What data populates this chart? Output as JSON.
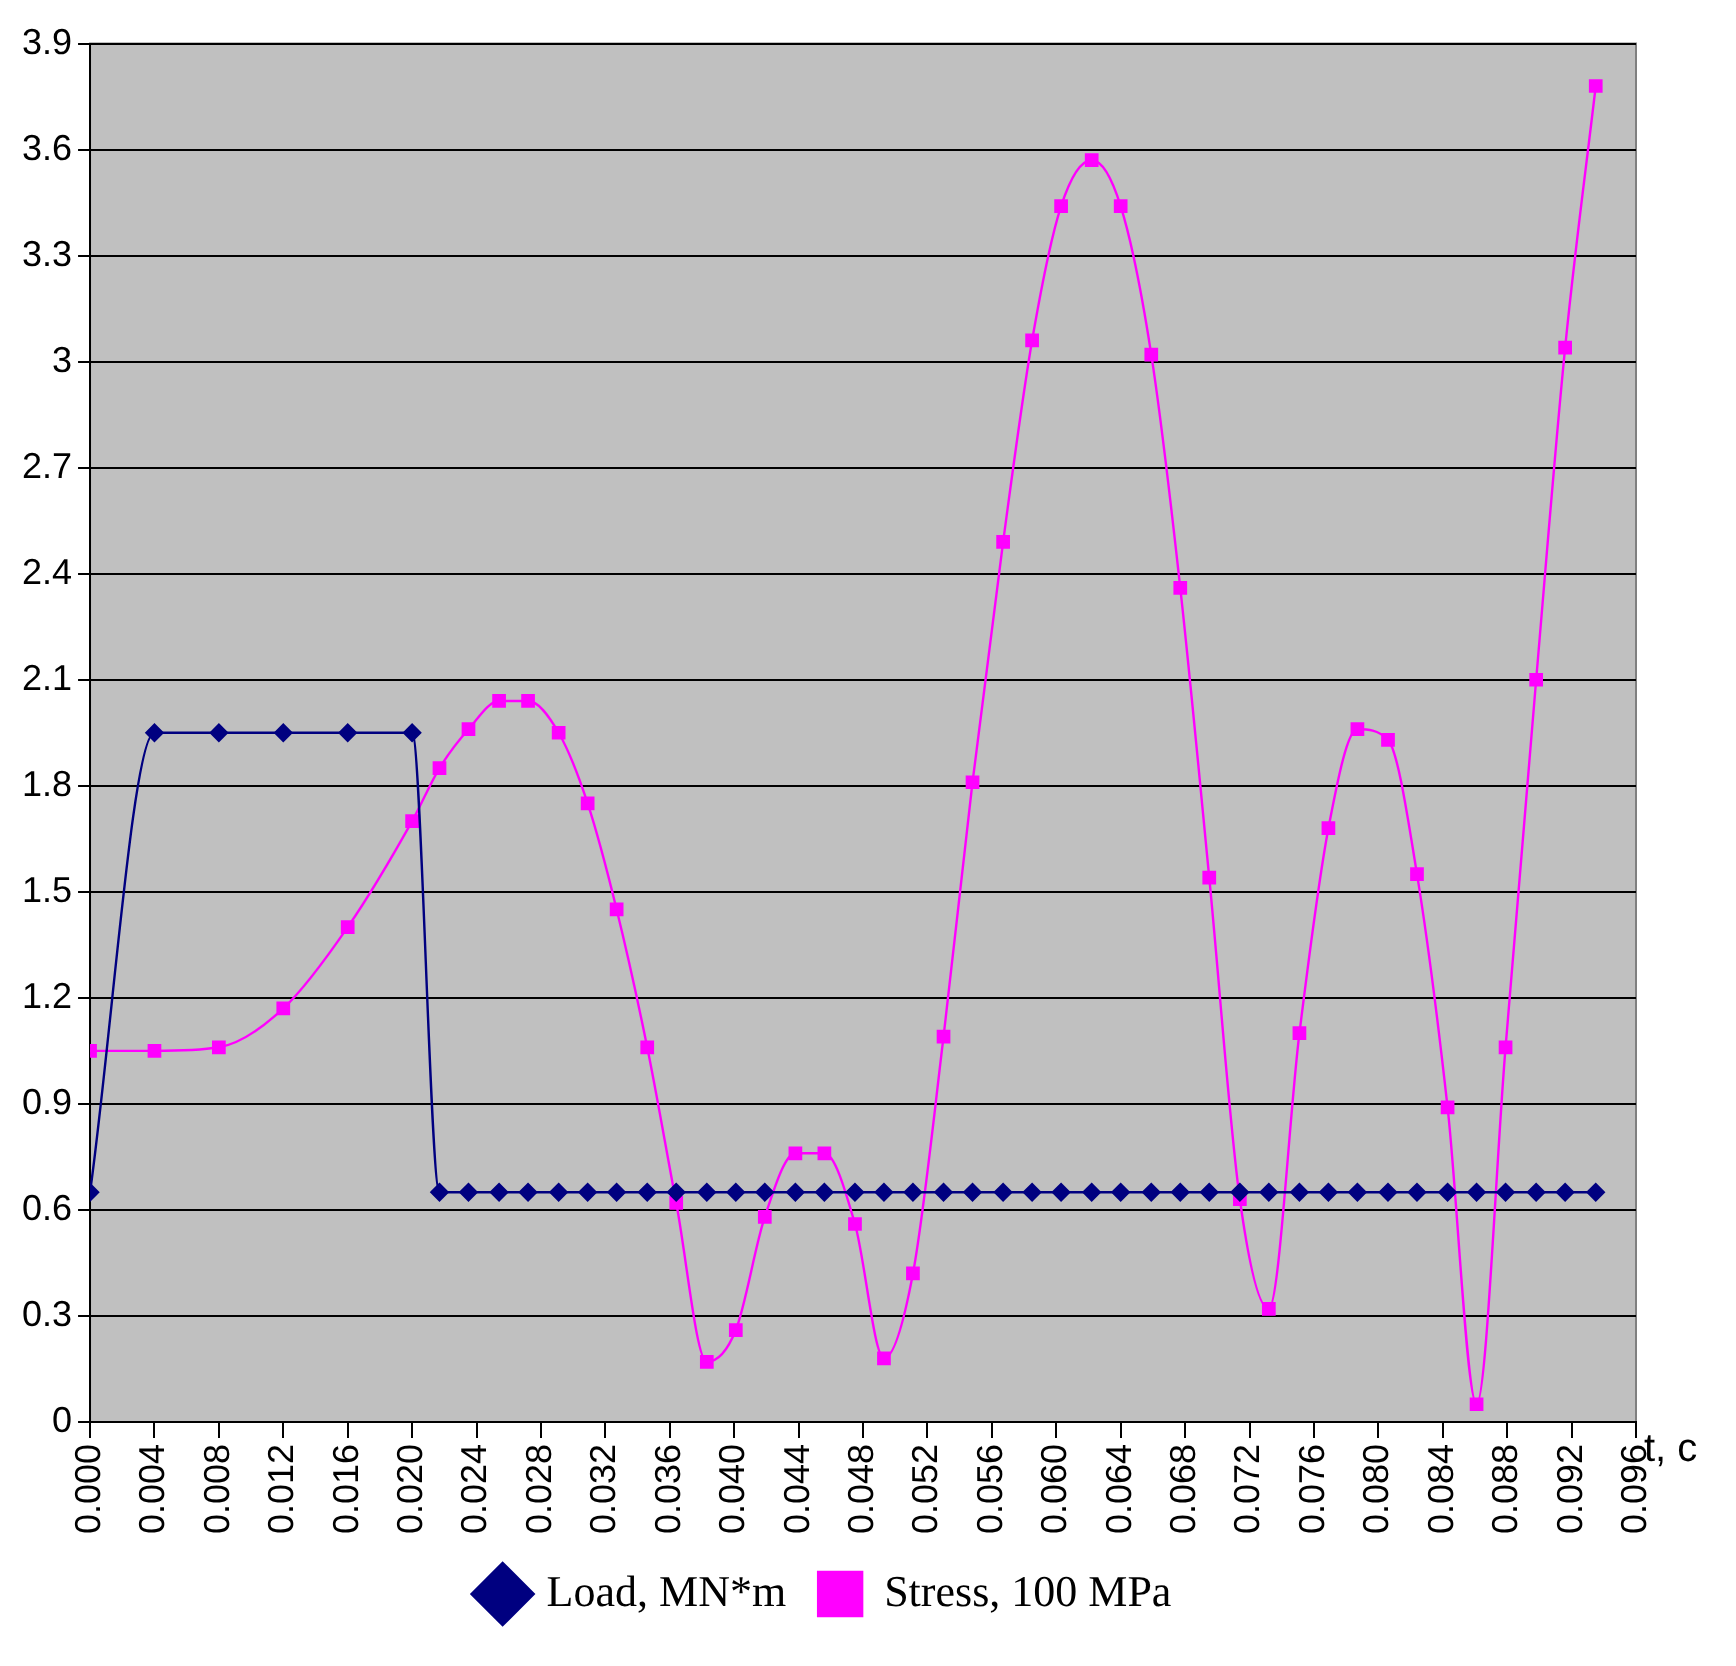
{
  "chart_data": {
    "type": "line",
    "xlabel": "t, c",
    "x": [
      0,
      0.004,
      0.008,
      0.012,
      0.016,
      0.02,
      0.0217,
      0.0235,
      0.0254,
      0.0272,
      0.0291,
      0.0309,
      0.0327,
      0.0346,
      0.0364,
      0.0383,
      0.0401,
      0.0419,
      0.0438,
      0.0456,
      0.0475,
      0.0493,
      0.0511,
      0.053,
      0.0548,
      0.0567,
      0.0585,
      0.0603,
      0.0622,
      0.064,
      0.0659,
      0.0677,
      0.0695,
      0.0714,
      0.0732,
      0.0751,
      0.0769,
      0.0787,
      0.0806,
      0.0824,
      0.0843,
      0.0861,
      0.0879,
      0.0898,
      0.0916,
      0.0935
    ],
    "series": [
      {
        "name": "Load, MN*m",
        "color": "#000080",
        "marker": "diamond",
        "values": [
          0.65,
          1.95,
          1.95,
          1.95,
          1.95,
          1.95,
          0.65,
          0.65,
          0.65,
          0.65,
          0.65,
          0.65,
          0.65,
          0.65,
          0.65,
          0.65,
          0.65,
          0.65,
          0.65,
          0.65,
          0.65,
          0.65,
          0.65,
          0.65,
          0.65,
          0.65,
          0.65,
          0.65,
          0.65,
          0.65,
          0.65,
          0.65,
          0.65,
          0.65,
          0.65,
          0.65,
          0.65,
          0.65,
          0.65,
          0.65,
          0.65,
          0.65,
          0.65,
          0.65,
          0.65,
          0.65
        ]
      },
      {
        "name": "Stress, 100 MPa",
        "color": "#ff00ff",
        "marker": "square",
        "values": [
          1.05,
          1.05,
          1.06,
          1.17,
          1.4,
          1.7,
          1.85,
          1.96,
          2.04,
          2.04,
          1.95,
          1.75,
          1.45,
          1.06,
          0.62,
          0.17,
          0.26,
          0.58,
          0.76,
          0.76,
          0.56,
          0.18,
          0.42,
          1.09,
          1.81,
          2.49,
          3.06,
          3.44,
          3.57,
          3.44,
          3.02,
          2.36,
          1.54,
          0.63,
          0.32,
          1.1,
          1.68,
          1.96,
          1.93,
          1.55,
          0.89,
          0.05,
          1.06,
          2.1,
          3.04,
          3.78
        ]
      }
    ],
    "xlim": [
      0,
      0.096
    ],
    "xticks": [
      {
        "value": 0,
        "label": "0.000"
      },
      {
        "value": 0.004,
        "label": "0.004"
      },
      {
        "value": 0.008,
        "label": "0.008"
      },
      {
        "value": 0.012,
        "label": "0.012"
      },
      {
        "value": 0.016,
        "label": "0.016"
      },
      {
        "value": 0.02,
        "label": "0.020"
      },
      {
        "value": 0.024,
        "label": "0.024"
      },
      {
        "value": 0.028,
        "label": "0.028"
      },
      {
        "value": 0.032,
        "label": "0.032"
      },
      {
        "value": 0.036,
        "label": "0.036"
      },
      {
        "value": 0.04,
        "label": "0.040"
      },
      {
        "value": 0.044,
        "label": "0.044"
      },
      {
        "value": 0.048,
        "label": "0.048"
      },
      {
        "value": 0.052,
        "label": "0.052"
      },
      {
        "value": 0.056,
        "label": "0.056"
      },
      {
        "value": 0.06,
        "label": "0.060"
      },
      {
        "value": 0.064,
        "label": "0.064"
      },
      {
        "value": 0.068,
        "label": "0.068"
      },
      {
        "value": 0.072,
        "label": "0.072"
      },
      {
        "value": 0.076,
        "label": "0.076"
      },
      {
        "value": 0.08,
        "label": "0.080"
      },
      {
        "value": 0.084,
        "label": "0.084"
      },
      {
        "value": 0.088,
        "label": "0.088"
      },
      {
        "value": 0.092,
        "label": "0.092"
      },
      {
        "value": 0.096,
        "label": "0.096"
      }
    ],
    "ylim": [
      0,
      3.9
    ],
    "yticks": [
      0,
      0.3,
      0.6,
      0.9,
      1.2,
      1.5,
      1.8,
      2.1,
      2.4,
      2.7,
      3,
      3.3,
      3.6,
      3.9
    ],
    "grid": "y",
    "legend": "bottom"
  }
}
